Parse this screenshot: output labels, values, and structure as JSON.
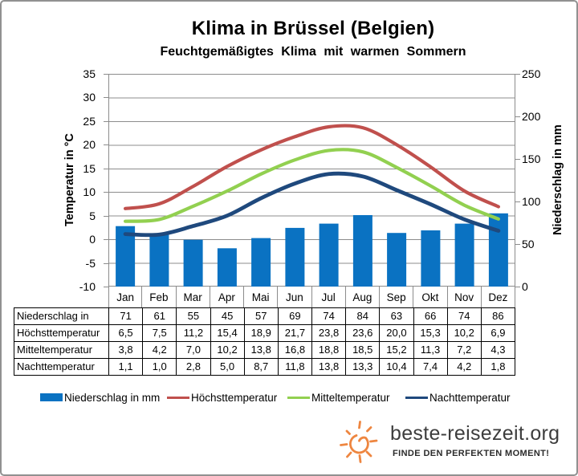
{
  "title": "Klima in Brüssel (Belgien)",
  "subtitle": "Feuchtgemäßigtes Klima mit warmen Sommern",
  "chart_data": {
    "type": "combo-bar-line",
    "categories": [
      "Jan",
      "Feb",
      "Mar",
      "Apr",
      "Mai",
      "Jun",
      "Jul",
      "Aug",
      "Sep",
      "Okt",
      "Nov",
      "Dez"
    ],
    "bar_series": {
      "name": "Niederschlag in mm",
      "values": [
        71,
        61,
        55,
        45,
        57,
        69,
        74,
        84,
        63,
        66,
        74,
        86
      ],
      "color": "#0A72C2",
      "axis": "right"
    },
    "line_series": [
      {
        "name": "Höchsttemperatur",
        "values": [
          6.5,
          7.5,
          11.2,
          15.4,
          18.9,
          21.7,
          23.8,
          23.6,
          20.0,
          15.3,
          10.2,
          6.9
        ],
        "color": "#C0504D"
      },
      {
        "name": "Mitteltemperatur",
        "values": [
          3.8,
          4.2,
          7.0,
          10.2,
          13.8,
          16.8,
          18.8,
          18.5,
          15.2,
          11.3,
          7.2,
          4.3
        ],
        "color": "#92D050"
      },
      {
        "name": "Nachttemperatur",
        "values": [
          1.1,
          1.0,
          2.8,
          5.0,
          8.7,
          11.8,
          13.8,
          13.3,
          10.4,
          7.4,
          4.2,
          1.8
        ],
        "color": "#1F497D"
      }
    ],
    "left_axis": {
      "label": "Temperatur in °C",
      "min": -10,
      "max": 35,
      "step": 5
    },
    "right_axis": {
      "label": "Niederschlag in mm",
      "min": 0,
      "max": 250,
      "step": 50
    },
    "grid": true,
    "gridline_color": "#8C8C8C",
    "legend_position": "bottom"
  },
  "table": {
    "rows": [
      {
        "label": "Niederschlag in mm",
        "values": [
          "71",
          "61",
          "55",
          "45",
          "57",
          "69",
          "74",
          "84",
          "63",
          "66",
          "74",
          "86"
        ]
      },
      {
        "label": "Höchsttemperatur",
        "values": [
          "6,5",
          "7,5",
          "11,2",
          "15,4",
          "18,9",
          "21,7",
          "23,8",
          "23,6",
          "20,0",
          "15,3",
          "10,2",
          "6,9"
        ]
      },
      {
        "label": "Mitteltemperatur",
        "values": [
          "3,8",
          "4,2",
          "7,0",
          "10,2",
          "13,8",
          "16,8",
          "18,8",
          "18,5",
          "15,2",
          "11,3",
          "7,2",
          "4,3"
        ]
      },
      {
        "label": "Nachttemperatur",
        "values": [
          "1,1",
          "1,0",
          "2,8",
          "5,0",
          "8,7",
          "11,8",
          "13,8",
          "13,3",
          "10,4",
          "7,4",
          "4,2",
          "1,8"
        ]
      }
    ]
  },
  "legend": {
    "items": [
      {
        "label": "Niederschlag in mm",
        "swatch": "bar",
        "color": "#0A72C2"
      },
      {
        "label": "Höchsttemperatur",
        "swatch": "line",
        "color": "#C0504D"
      },
      {
        "label": "Mitteltemperatur",
        "swatch": "line",
        "color": "#92D050"
      },
      {
        "label": "Nachttemperatur",
        "swatch": "line",
        "color": "#1F497D"
      }
    ]
  },
  "logo": {
    "site": "beste-reisezeit.org",
    "tagline": "FINDE DEN PERFEKTEN MOMENT!",
    "sun_color": "#EE8640"
  }
}
